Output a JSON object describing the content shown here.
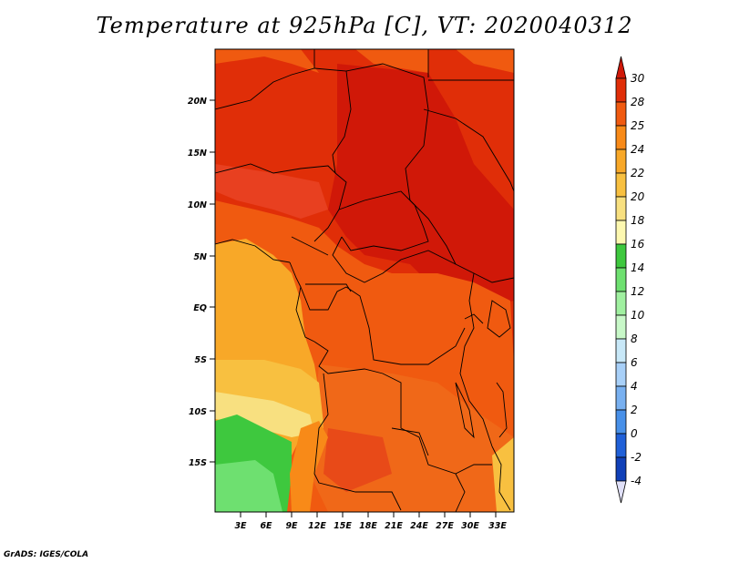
{
  "title": "Temperature at 925hPa [C], VT: 2020040312",
  "footer": "GrADS: IGES/COLA",
  "map": {
    "lat_labels": [
      "20N",
      "15N",
      "10N",
      "5N",
      "EQ",
      "5S",
      "10S",
      "15S"
    ],
    "lon_labels": [
      "3E",
      "6E",
      "9E",
      "12E",
      "15E",
      "18E",
      "21E",
      "24E",
      "27E",
      "30E",
      "33E"
    ]
  },
  "colorbar": {
    "levels": [
      "30",
      "28",
      "25",
      "24",
      "22",
      "20",
      "18",
      "16",
      "14",
      "12",
      "10",
      "8",
      "6",
      "4",
      "2",
      "0",
      "-2",
      "-4"
    ],
    "colors": [
      "#d01808",
      "#e02e08",
      "#f05a10",
      "#f88a18",
      "#f8a828",
      "#f8c040",
      "#f8e080",
      "#fdf8b0",
      "#3ec83e",
      "#6ee070",
      "#a0f0a0",
      "#c8f8c8",
      "#c8e8f8",
      "#a8d0f8",
      "#78b0f0",
      "#4890e8",
      "#2060d8",
      "#1040b8",
      "#102080",
      "#e0e0f8"
    ]
  }
}
